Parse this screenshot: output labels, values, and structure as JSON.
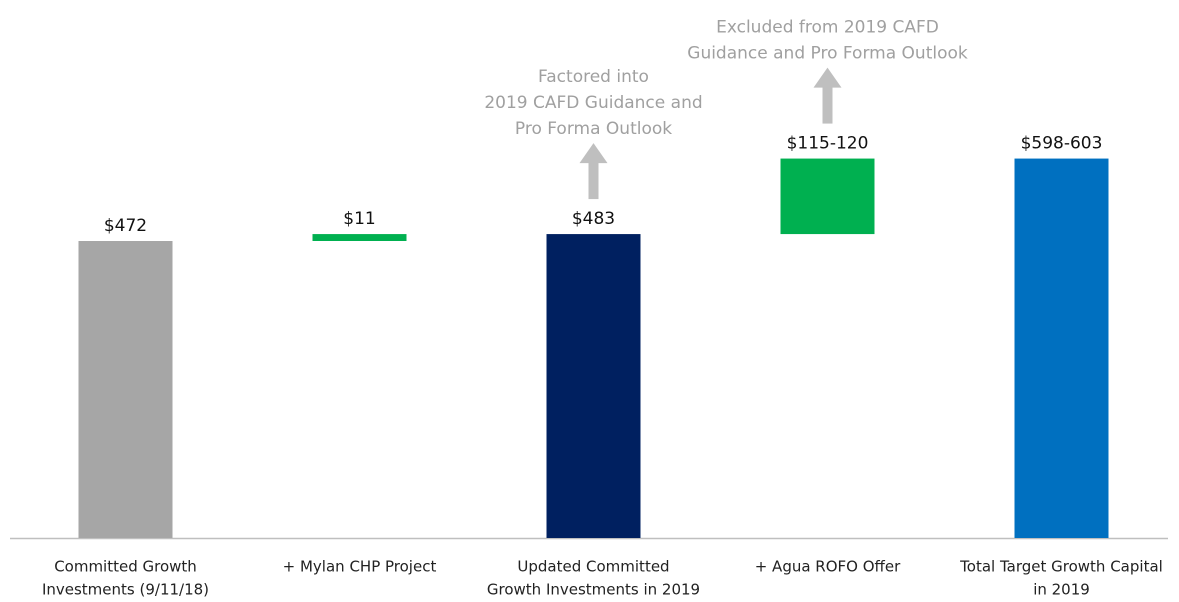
{
  "chart_data": {
    "type": "waterfall",
    "categories": [
      [
        "Committed Growth",
        "Investments (9/11/18)"
      ],
      [
        "+ Mylan CHP Project"
      ],
      [
        "Updated Committed",
        "Growth Investments in 2019"
      ],
      [
        "+ Agua ROFO Offer"
      ],
      [
        "Total Target Growth Capital",
        "in 2019"
      ]
    ],
    "steps": [
      "total",
      "increase",
      "total",
      "increase",
      "total"
    ],
    "values": [
      472,
      11,
      483,
      120,
      603
    ],
    "value_labels": [
      "$472",
      "$11",
      "$483",
      "$115-120",
      "$598-603"
    ],
    "colors": [
      "#a6a6a6",
      "#00b050",
      "#002060",
      "#00b050",
      "#0070c0"
    ],
    "ylim": [
      0,
      855
    ],
    "annotations": [
      {
        "target": 2,
        "lines": [
          "Factored into",
          "2019 CAFD Guidance and",
          "Pro Forma Outlook"
        ]
      },
      {
        "target": 3,
        "lines": [
          "Excluded from 2019 CAFD",
          "Guidance and Pro Forma Outlook"
        ]
      }
    ]
  }
}
